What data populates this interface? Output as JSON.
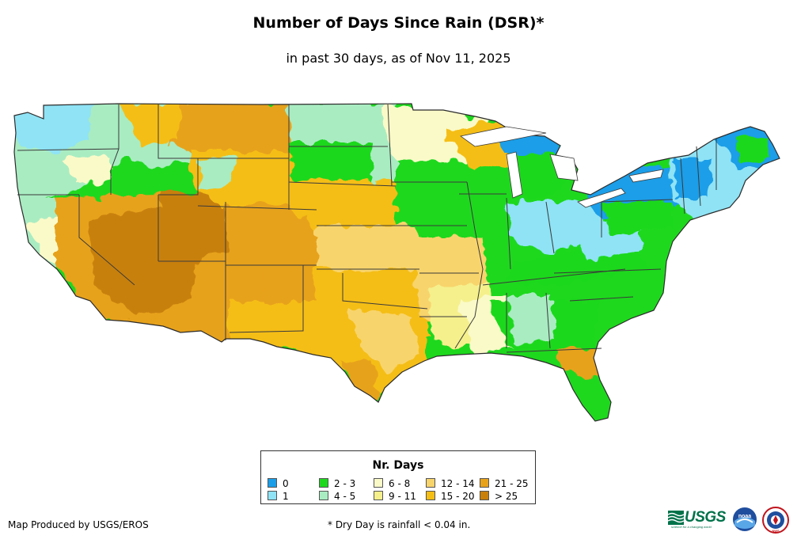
{
  "header": {
    "title": "Number of Days Since Rain (DSR)*",
    "subtitle": "in past 30 days, as of Nov 11, 2025"
  },
  "legend": {
    "title": "Nr. Days",
    "items": [
      {
        "label": "0",
        "color": "#1a9ee8"
      },
      {
        "label": "1",
        "color": "#8fe3f5"
      },
      {
        "label": "2 - 3",
        "color": "#1ed81e"
      },
      {
        "label": "4 - 5",
        "color": "#a9ecc2"
      },
      {
        "label": "6 - 8",
        "color": "#fafac8"
      },
      {
        "label": "9 - 11",
        "color": "#f5f08c"
      },
      {
        "label": "12 - 14",
        "color": "#f8d46c"
      },
      {
        "label": "15 - 20",
        "color": "#f5be14"
      },
      {
        "label": "21 - 25",
        "color": "#e7a21a"
      },
      {
        "label": "> 25",
        "color": "#c8800a"
      }
    ]
  },
  "map": {
    "region": "Contiguous United States",
    "boundary_color": "#3a3a3a"
  },
  "footer": {
    "credit": "Map Produced by USGS/EROS",
    "note": "* Dry Day is rainfall < 0.04 in."
  },
  "logos": {
    "usgs_word": "USGS",
    "usgs_tagline": "science for a changing world",
    "noaa_text": "noaa",
    "nws_text": "NWS"
  }
}
